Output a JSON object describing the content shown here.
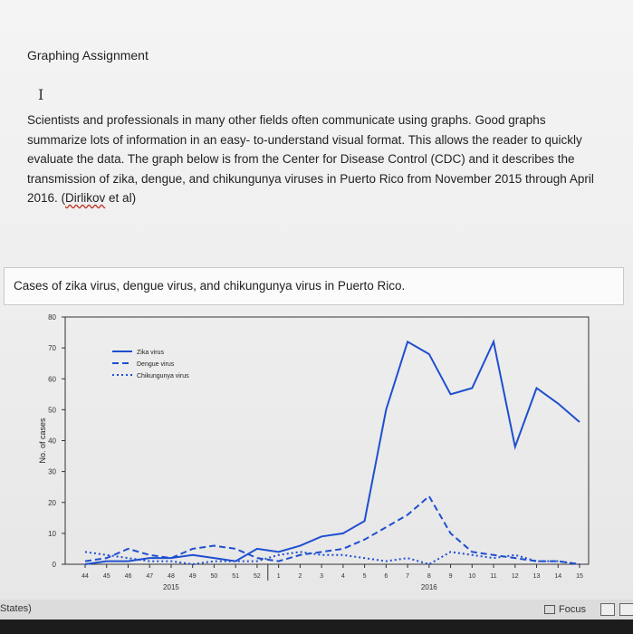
{
  "document": {
    "title": "Graphing Assignment",
    "cursor_glyph": "I",
    "paragraph": "Scientists and professionals in many other fields often communicate using graphs. Good graphs summarize lots of information in an easy- to-understand visual format. This allows the reader to quickly evaluate the data. The graph below is from the Center for Disease Control (CDC) and it describes the transmission of zika, dengue, and chikungunya viruses in Puerto Rico from November 2015 through April 2016. (",
    "citation": "Dirlikov",
    "citation_tail": " et al)",
    "caption": "Cases of zika virus, dengue virus, and chikungunya virus in Puerto Rico."
  },
  "chart_data": {
    "type": "line",
    "ylabel": "No. of cases",
    "ylim": [
      0,
      80
    ],
    "yticks": [
      0,
      10,
      20,
      30,
      40,
      50,
      60,
      70,
      80
    ],
    "categories": [
      "44",
      "45",
      "46",
      "47",
      "48",
      "49",
      "50",
      "51",
      "52",
      "1",
      "2",
      "3",
      "4",
      "5",
      "6",
      "7",
      "8",
      "9",
      "10",
      "11",
      "12",
      "13",
      "14",
      "15"
    ],
    "year_labels": [
      {
        "label": "2015",
        "under": "48"
      },
      {
        "label": "2016",
        "under": "8"
      }
    ],
    "legend_position": "top-left",
    "series": [
      {
        "name": "Zika virus",
        "style": "solid",
        "color": "#1f4fd0",
        "values": [
          0,
          1,
          1,
          2,
          2,
          3,
          2,
          1,
          5,
          4,
          6,
          9,
          10,
          14,
          50,
          72,
          68,
          55,
          57,
          72,
          38,
          57,
          52,
          46
        ]
      },
      {
        "name": "Dengue virus",
        "style": "dashed",
        "color": "#1f4fd0",
        "values": [
          1,
          2,
          5,
          3,
          2,
          5,
          6,
          5,
          2,
          1,
          3,
          4,
          5,
          8,
          12,
          16,
          22,
          10,
          4,
          3,
          2,
          1,
          1,
          0
        ]
      },
      {
        "name": "Chikungunya virus",
        "style": "dotted",
        "color": "#1f4fd0",
        "values": [
          4,
          3,
          2,
          1,
          1,
          0,
          1,
          1,
          1,
          3,
          4,
          3,
          3,
          2,
          1,
          2,
          0,
          4,
          3,
          2,
          3,
          1,
          1,
          0
        ]
      }
    ]
  },
  "statusbar": {
    "left_text": "States)",
    "focus_label": "Focus"
  }
}
